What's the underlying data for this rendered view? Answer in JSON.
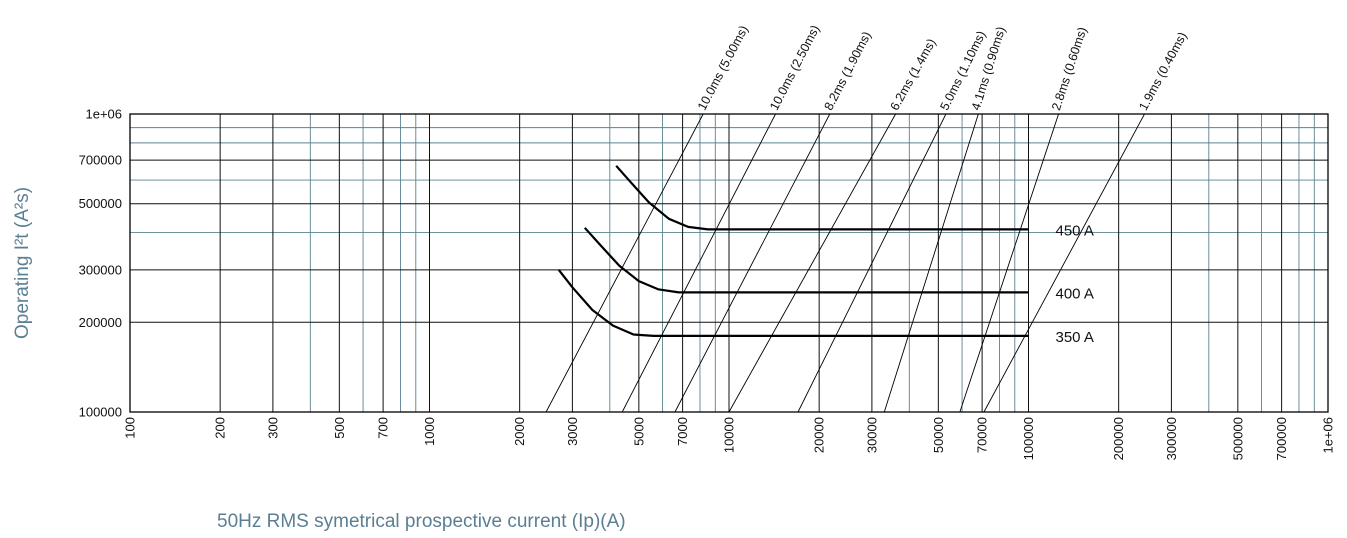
{
  "chart_data": {
    "type": "line",
    "xlabel": "50Hz RMS symetrical prospective current (Ip)(A)",
    "ylabel": "Operating I²t (A²s)",
    "x_scale": "log",
    "y_scale": "log",
    "xlim": [
      100,
      1000000
    ],
    "ylim": [
      100000,
      1000000
    ],
    "x_ticks": [
      100,
      200,
      300,
      500,
      700,
      1000,
      2000,
      3000,
      5000,
      7000,
      10000,
      20000,
      30000,
      50000,
      70000,
      100000,
      200000,
      300000,
      500000,
      700000,
      1000000
    ],
    "x_tick_labels": [
      "100",
      "200",
      "300",
      "500",
      "700",
      "1000",
      "2000",
      "3000",
      "5000",
      "7000",
      "10000",
      "20000",
      "30000",
      "50000",
      "70000",
      "100000",
      "200000",
      "300000",
      "500000",
      "700000",
      "1e+06"
    ],
    "y_ticks": [
      100000,
      200000,
      300000,
      500000,
      700000,
      1000000
    ],
    "y_tick_labels": [
      "100000",
      "200000",
      "300000",
      "500000",
      "700000",
      "1e+06"
    ],
    "grid": true,
    "colors": {
      "major_grid": "#111111",
      "minor_grid": "#5b8293",
      "axis_title": "#5b7f92",
      "curve": "#000000"
    },
    "series": [
      {
        "name": "450 A",
        "x": [
          4200,
          4700,
          5400,
          6300,
          7300,
          8500,
          10000,
          100000
        ],
        "y": [
          670000,
          590000,
          505000,
          445000,
          418000,
          410000,
          410000,
          410000
        ]
      },
      {
        "name": "400 A",
        "x": [
          3300,
          3700,
          4300,
          5000,
          5800,
          6800,
          7500,
          100000
        ],
        "y": [
          415000,
          365000,
          310000,
          275000,
          258000,
          252000,
          252000,
          252000
        ]
      },
      {
        "name": "350 A",
        "x": [
          2700,
          3000,
          3500,
          4100,
          4800,
          5600,
          6000,
          100000
        ],
        "y": [
          300000,
          262000,
          220000,
          195000,
          182000,
          180000,
          180000,
          180000
        ]
      }
    ],
    "time_lines": [
      {
        "label": "10.0ms (5.00ms)",
        "x": [
          2450,
          8200
        ],
        "y": [
          100000,
          1000000
        ]
      },
      {
        "label": "10.0ms (2.50ms)",
        "x": [
          4400,
          14300
        ],
        "y": [
          100000,
          1000000
        ]
      },
      {
        "label": "8.2ms (1.90ms)",
        "x": [
          6600,
          21700
        ],
        "y": [
          100000,
          1000000
        ]
      },
      {
        "label": "6.2ms (1.4ms)",
        "x": [
          10000,
          36000
        ],
        "y": [
          100000,
          1000000
        ]
      },
      {
        "label": "5.0ms (1.10ms)",
        "x": [
          17000,
          53000
        ],
        "y": [
          100000,
          1000000
        ]
      },
      {
        "label": "4.1ms (0.90ms)",
        "x": [
          33000,
          68000
        ],
        "y": [
          100000,
          1000000
        ]
      },
      {
        "label": "2.8ms (0.60ms)",
        "x": [
          59000,
          126000
        ],
        "y": [
          100000,
          1000000
        ]
      },
      {
        "label": "1.9ms (0.40ms)",
        "x": [
          71000,
          244000
        ],
        "y": [
          100000,
          1000000
        ]
      }
    ]
  }
}
